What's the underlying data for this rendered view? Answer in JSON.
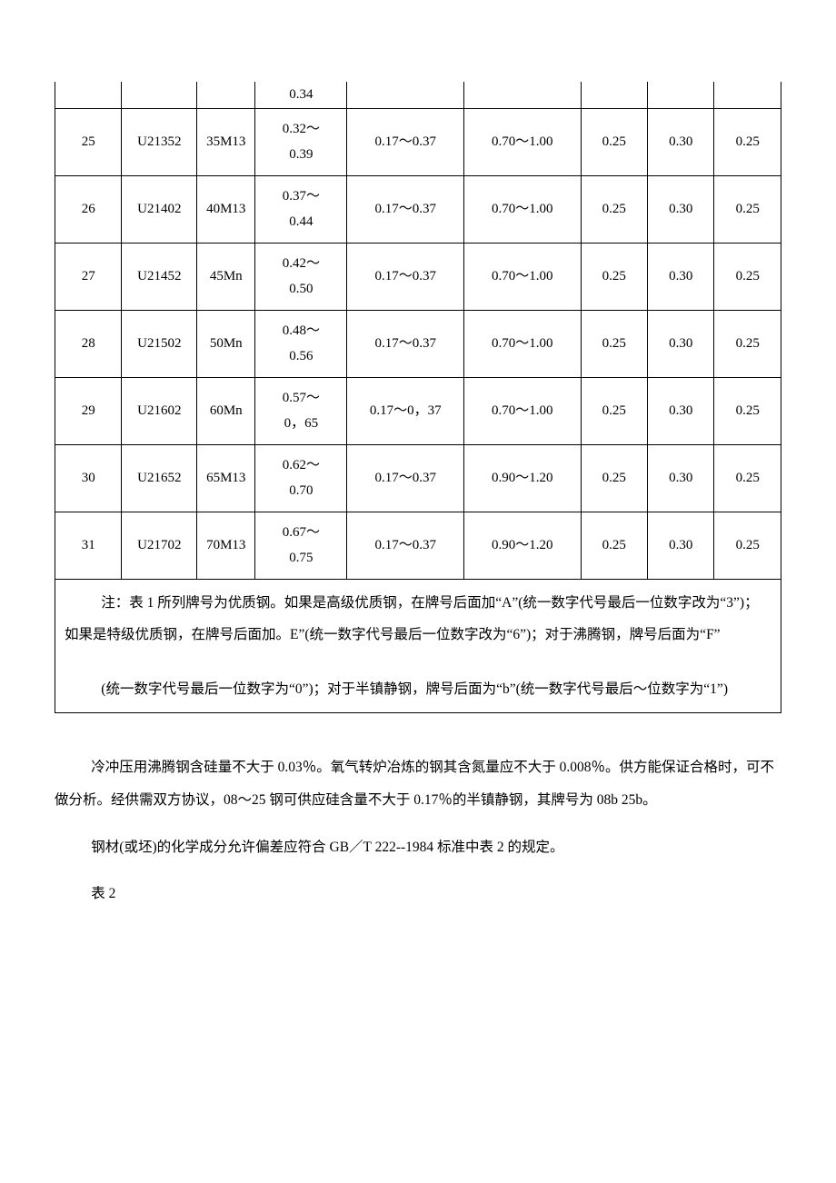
{
  "table": {
    "columns": {
      "seq": {
        "width": "8%"
      },
      "code": {
        "width": "9%"
      },
      "grade": {
        "width": "7%"
      },
      "c": {
        "width": "11%"
      },
      "si": {
        "width": "14%"
      },
      "mn": {
        "width": "14%"
      },
      "cr": {
        "width": "8%"
      },
      "ni": {
        "width": "8%"
      },
      "cu": {
        "width": "8%"
      }
    },
    "border_color": "#000000",
    "font_size": 15,
    "partial_first_row_c": "0.34",
    "rows": [
      {
        "seq": "25",
        "code": "U21352",
        "grade": "35M13",
        "c": "0.32～0.39",
        "si": "0.17～0.37",
        "mn": "0.70～1.00",
        "cr": "0.25",
        "ni": "0.30",
        "cu": "0.25"
      },
      {
        "seq": "26",
        "code": "U21402",
        "grade": "40M13",
        "c": "0.37～0.44",
        "si": "0.17～0.37",
        "mn": "0.70～1.00",
        "cr": "0.25",
        "ni": "0.30",
        "cu": "0.25"
      },
      {
        "seq": "27",
        "code": "U21452",
        "grade": "45Mn",
        "c": "0.42～0.50",
        "si": "0.17～0.37",
        "mn": "0.70～1.00",
        "cr": "0.25",
        "ni": "0.30",
        "cu": "0.25"
      },
      {
        "seq": "28",
        "code": "U21502",
        "grade": "50Mn",
        "c": "0.48～0.56",
        "si": "0.17～0.37",
        "mn": "0.70～1.00",
        "cr": "0.25",
        "ni": "0.30",
        "cu": "0.25"
      },
      {
        "seq": "29",
        "code": "U21602",
        "grade": "60Mn",
        "c": "0.57～0，65",
        "si": "0.17～0，37",
        "mn": "0.70～1.00",
        "cr": "0.25",
        "ni": "0.30",
        "cu": "0.25"
      },
      {
        "seq": "30",
        "code": "U21652",
        "grade": "65M13",
        "c": "0.62～0.70",
        "si": "0.17～0.37",
        "mn": "0.90～1.20",
        "cr": "0.25",
        "ni": "0.30",
        "cu": "0.25"
      },
      {
        "seq": "31",
        "code": "U21702",
        "grade": "70M13",
        "c": "0.67～0.75",
        "si": "0.17～0.37",
        "mn": "0.90～1.20",
        "cr": "0.25",
        "ni": "0.30",
        "cu": "0.25"
      }
    ],
    "notes": {
      "p1": "注：表 1 所列牌号为优质钢。如果是高级优质钢，在牌号后面加“A”(统一数字代号最后一位数字改为“3”)；如果是特级优质钢，在牌号后面加。E”(统一数字代号最后一位数字改为“6”)；对于沸腾钢，牌号后面为“F”",
      "p2": "(统一数字代号最后一位数字为“0”)；对于半镇静钢，牌号后面为“b”(统一数字代号最后～位数字为“1”)"
    }
  },
  "body": {
    "p1": "冷冲压用沸腾钢含硅量不大于 0.03％。氧气转炉冶炼的钢其含氮量应不大于 0.008％。供方能保证合格时，可不做分析。经供需双方协议，08～25 钢可供应硅含量不大于 0.17％的半镇静钢，其牌号为 08b 25b。",
    "p2": "钢材(或坯)的化学成分允许偏差应符合 GB／T 222--1984 标准中表 2 的规定。",
    "table2_label": "表 2"
  }
}
